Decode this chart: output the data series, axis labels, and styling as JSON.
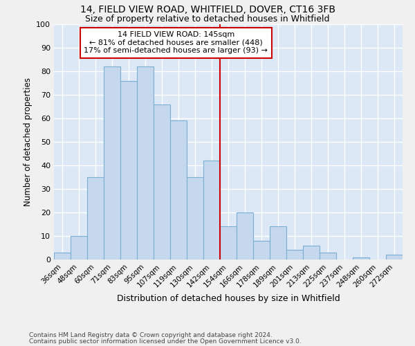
{
  "title_line1": "14, FIELD VIEW ROAD, WHITFIELD, DOVER, CT16 3FB",
  "title_line2": "Size of property relative to detached houses in Whitfield",
  "xlabel": "Distribution of detached houses by size in Whitfield",
  "ylabel": "Number of detached properties",
  "footer_line1": "Contains HM Land Registry data © Crown copyright and database right 2024.",
  "footer_line2": "Contains public sector information licensed under the Open Government Licence v3.0.",
  "bar_labels": [
    "36sqm",
    "48sqm",
    "60sqm",
    "71sqm",
    "83sqm",
    "95sqm",
    "107sqm",
    "119sqm",
    "130sqm",
    "142sqm",
    "154sqm",
    "166sqm",
    "178sqm",
    "189sqm",
    "201sqm",
    "213sqm",
    "225sqm",
    "237sqm",
    "248sqm",
    "260sqm",
    "272sqm"
  ],
  "bar_heights": [
    3,
    10,
    35,
    82,
    76,
    82,
    66,
    59,
    35,
    42,
    14,
    20,
    8,
    14,
    4,
    6,
    3,
    0,
    1,
    0,
    2
  ],
  "bar_color": "#c5d8ee",
  "bar_edge_color": "#7aafd4",
  "bg_color": "#dce8f5",
  "fig_bg_color": "#f0f0f0",
  "grid_color": "#ffffff",
  "vline_x_index": 9.5,
  "vline_color": "#cc0000",
  "annotation_text": "14 FIELD VIEW ROAD: 145sqm\n← 81% of detached houses are smaller (448)\n17% of semi-detached houses are larger (93) →",
  "annotation_box_color": "#cc0000",
  "ylim": [
    0,
    100
  ],
  "yticks": [
    0,
    10,
    20,
    30,
    40,
    50,
    60,
    70,
    80,
    90,
    100
  ]
}
